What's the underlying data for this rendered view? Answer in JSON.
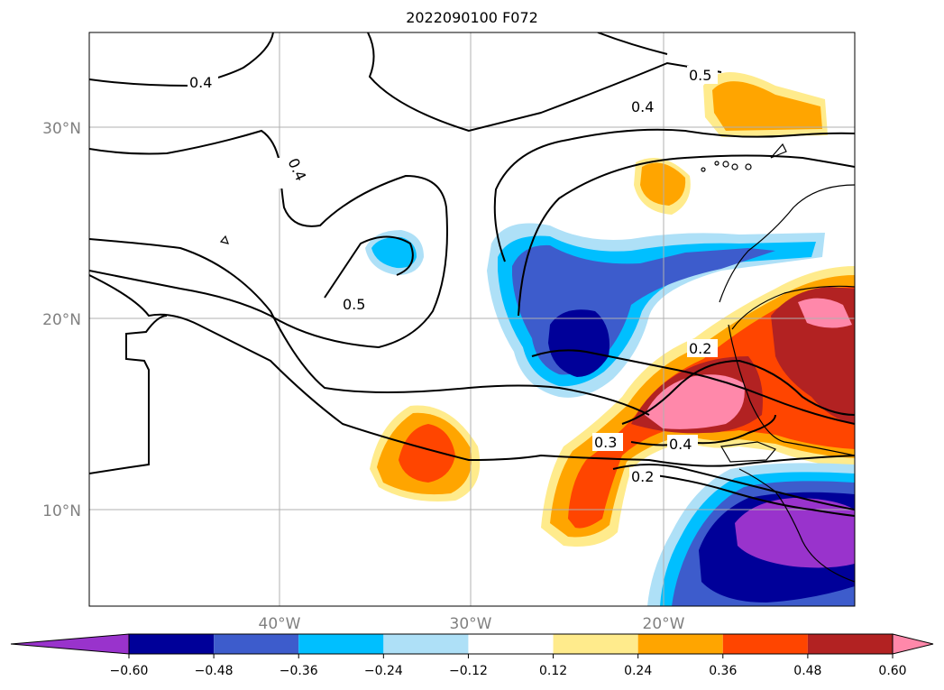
{
  "title": "2022090100 F072",
  "map": {
    "lat_ticks": [
      "30°N",
      "20°N",
      "10°N"
    ],
    "lon_ticks": [
      "40°W",
      "30°W",
      "20°W"
    ],
    "contour_labels": [
      "0.4",
      "0.4",
      "0.5",
      "0.5",
      "0.4",
      "0.2",
      "0.3",
      "0.4",
      "0.2"
    ]
  },
  "colorbar": {
    "ticks": [
      "−0.60",
      "−0.48",
      "−0.36",
      "−0.24",
      "−0.12",
      "0.12",
      "0.24",
      "0.36",
      "0.48",
      "0.60"
    ],
    "colors": [
      "#9933cc",
      "#000099",
      "#3d5ccc",
      "#00bfff",
      "#aee0f7",
      "#ffffff",
      "#ffeb8c",
      "#ffa500",
      "#ff4500",
      "#b22222",
      "#ff88aa"
    ]
  }
}
